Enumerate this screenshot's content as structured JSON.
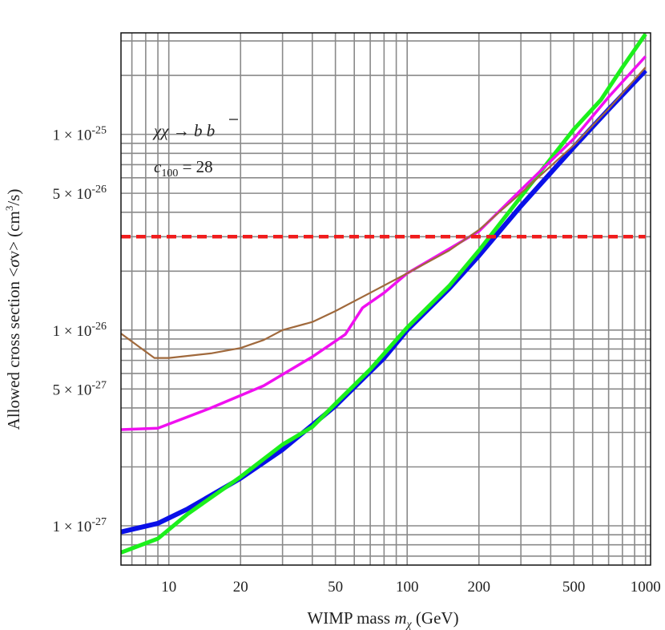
{
  "chart_data": {
    "type": "line",
    "title": "",
    "xlabel": "WIMP mass m_χ (GeV)",
    "xlabel_parts": {
      "prefix": "WIMP mass ",
      "var": "m",
      "sub": "χ",
      "unit": " (GeV)"
    },
    "ylabel": "Allowed cross section <σv> (cm³/s)",
    "ylabel_parts": {
      "prefix": "Allowed cross section <",
      "sigma": "σ",
      "mid": "v> (cm",
      "sup": "3",
      "suffix": "/s)"
    },
    "x_scale": "log",
    "y_scale": "log",
    "xlim": [
      6.3,
      1050
    ],
    "ylim": [
      6.3e-28,
      3.3e-25
    ],
    "x_ticks": [
      {
        "value": 10,
        "label": "10"
      },
      {
        "value": 20,
        "label": "20"
      },
      {
        "value": 50,
        "label": "50"
      },
      {
        "value": 100,
        "label": "100"
      },
      {
        "value": 200,
        "label": "200"
      },
      {
        "value": 500,
        "label": "500"
      },
      {
        "value": 1000,
        "label": "1000"
      }
    ],
    "y_ticks": [
      {
        "value": 1e-27,
        "mant": "1",
        "exp": "-27"
      },
      {
        "value": 5e-27,
        "mant": "5",
        "exp": "-27"
      },
      {
        "value": 1e-26,
        "mant": "1",
        "exp": "-26"
      },
      {
        "value": 5e-26,
        "mant": "5",
        "exp": "-26"
      },
      {
        "value": 1e-25,
        "mant": "1",
        "exp": "-25"
      }
    ],
    "x_grid": [
      7,
      8,
      9,
      10,
      20,
      30,
      40,
      50,
      60,
      70,
      80,
      90,
      100,
      200,
      300,
      400,
      500,
      600,
      700,
      800,
      900,
      1000
    ],
    "y_grid": [
      7e-28,
      8e-28,
      9e-28,
      1e-27,
      2e-27,
      3e-27,
      4e-27,
      5e-27,
      6e-27,
      7e-27,
      8e-27,
      9e-27,
      1e-26,
      2e-26,
      3e-26,
      4e-26,
      5e-26,
      6e-26,
      7e-26,
      8e-26,
      9e-26,
      1e-25,
      2e-25,
      3e-25
    ],
    "grid": true,
    "annotation": {
      "line1_chi": "χχ",
      "line1_arrow": " → ",
      "line1_b": "b",
      "line1_bbar": "b",
      "line2_c": "c",
      "line2_sub": "100",
      "line2_eq": " = 28"
    },
    "times_symbol": "×",
    "ten": "10",
    "series": [
      {
        "name": "blue",
        "color": "#0a10e8",
        "width": 6,
        "dashed": false,
        "points": [
          [
            6.3,
            9.3e-28
          ],
          [
            9,
            1.03e-27
          ],
          [
            12,
            1.22e-27
          ],
          [
            20,
            1.75e-27
          ],
          [
            30,
            2.45e-27
          ],
          [
            50,
            4.1e-27
          ],
          [
            80,
            7.2e-27
          ],
          [
            100,
            1e-26
          ],
          [
            150,
            1.63e-26
          ],
          [
            200,
            2.4e-26
          ],
          [
            300,
            4.3e-26
          ],
          [
            500,
            8.6e-26
          ],
          [
            700,
            1.34e-25
          ],
          [
            1000,
            2.12e-25
          ]
        ]
      },
      {
        "name": "green",
        "color": "#1cf01c",
        "width": 5,
        "dashed": false,
        "points": [
          [
            6.3,
            7.3e-28
          ],
          [
            9,
            8.6e-28
          ],
          [
            12,
            1.15e-27
          ],
          [
            20,
            1.78e-27
          ],
          [
            30,
            2.6e-27
          ],
          [
            40,
            3.2e-27
          ],
          [
            50,
            4.2e-27
          ],
          [
            70,
            6.3e-27
          ],
          [
            100,
            1.03e-26
          ],
          [
            150,
            1.68e-26
          ],
          [
            200,
            2.55e-26
          ],
          [
            300,
            4.8e-26
          ],
          [
            500,
            1.06e-25
          ],
          [
            650,
            1.5e-25
          ],
          [
            800,
            2.2e-25
          ],
          [
            1000,
            3.25e-25
          ]
        ]
      },
      {
        "name": "magenta",
        "color": "#f010f0",
        "width": 3.5,
        "dashed": false,
        "points": [
          [
            6.3,
            3.1e-27
          ],
          [
            9,
            3.15e-27
          ],
          [
            15,
            4e-27
          ],
          [
            25,
            5.2e-27
          ],
          [
            40,
            7.3e-27
          ],
          [
            55,
            9.5e-27
          ],
          [
            65,
            1.3e-26
          ],
          [
            80,
            1.55e-26
          ],
          [
            100,
            1.95e-26
          ],
          [
            150,
            2.6e-26
          ],
          [
            200,
            3.2e-26
          ],
          [
            300,
            5.2e-26
          ],
          [
            500,
            9.5e-26
          ],
          [
            700,
            1.55e-25
          ],
          [
            1000,
            2.5e-25
          ]
        ]
      },
      {
        "name": "brown",
        "color": "#a0693c",
        "width": 2.2,
        "dashed": false,
        "points": [
          [
            6.3,
            9.6e-27
          ],
          [
            8.7,
            7.2e-27
          ],
          [
            10,
            7.2e-27
          ],
          [
            15,
            7.6e-27
          ],
          [
            20,
            8.1e-27
          ],
          [
            25,
            8.9e-27
          ],
          [
            30,
            1e-26
          ],
          [
            40,
            1.1e-26
          ],
          [
            50,
            1.25e-26
          ],
          [
            70,
            1.55e-26
          ],
          [
            100,
            1.95e-26
          ],
          [
            150,
            2.55e-26
          ],
          [
            200,
            3.25e-26
          ],
          [
            300,
            5e-26
          ],
          [
            500,
            8.8e-26
          ],
          [
            700,
            1.35e-25
          ],
          [
            1000,
            2.2e-25
          ]
        ]
      },
      {
        "name": "thermal-relic",
        "color": "#f01c1c",
        "width": 4.5,
        "dashed": true,
        "points": [
          [
            6.3,
            3e-26
          ],
          [
            1000,
            3e-26
          ]
        ]
      }
    ]
  }
}
